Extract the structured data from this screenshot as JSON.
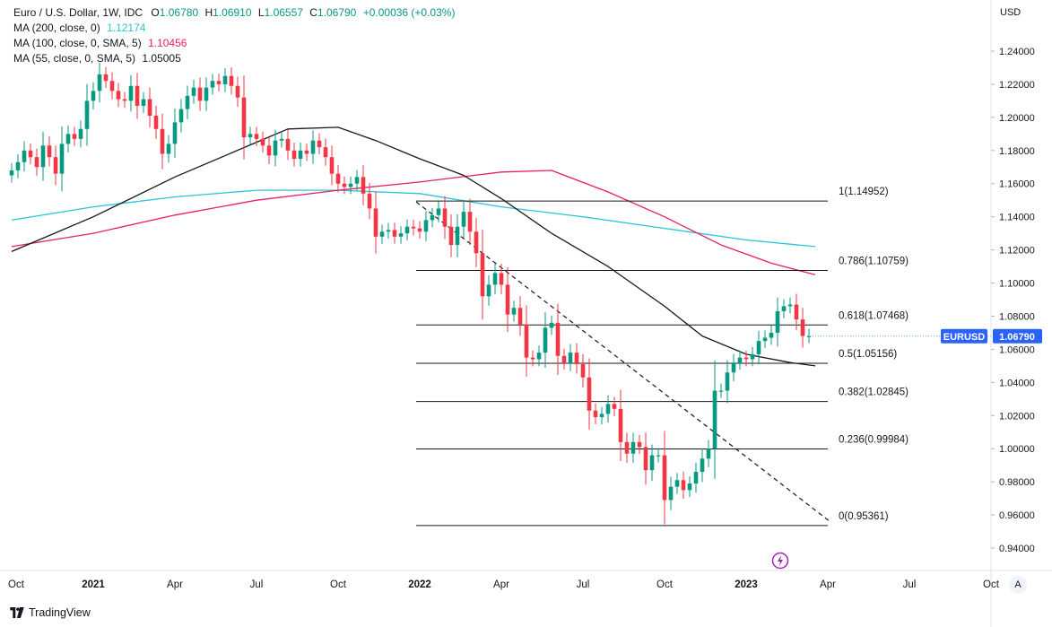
{
  "legend": {
    "symbol": "Euro / U.S. Dollar, 1W, IDC",
    "open_label": "O",
    "open": "1.06780",
    "high_label": "H",
    "high": "1.06910",
    "low_label": "L",
    "low": "1.06557",
    "close_label": "C",
    "close": "1.06790",
    "change": "+0.00036 (+0.03%)",
    "ma200_label": "MA (200, close, 0)",
    "ma200_value": "1.12174",
    "ma100_label": "MA (100, close, 0, SMA, 5)",
    "ma100_value": "1.10456",
    "ma55_label": "MA (55, close, 0, SMA, 5)",
    "ma55_value": "1.05005"
  },
  "currency": "USD",
  "branding": "TradingView",
  "auto_label": "A",
  "colors": {
    "up": "#089981",
    "down": "#f23645",
    "ma200": "#26c6da",
    "ma100": "#e91e63",
    "ma55": "#131722",
    "price_badge": "#2962ff",
    "fib_line": "#131722"
  },
  "chart_data": {
    "type": "candlestick",
    "title": "Euro / U.S. Dollar, 1W, IDC",
    "ylabel": "USD",
    "ylim": [
      0.928,
      1.255
    ],
    "y_ticks": [
      "1.24000",
      "1.22000",
      "1.20000",
      "1.18000",
      "1.16000",
      "1.14000",
      "1.12000",
      "1.10000",
      "1.08000",
      "1.06000",
      "1.04000",
      "1.02000",
      "1.00000",
      "0.98000",
      "0.96000",
      "0.94000"
    ],
    "x_ticks": [
      {
        "label": "Oct",
        "week": 0,
        "bold": false
      },
      {
        "label": "2021",
        "week": 13,
        "bold": true
      },
      {
        "label": "Apr",
        "week": 26,
        "bold": false
      },
      {
        "label": "Jul",
        "week": 39,
        "bold": false
      },
      {
        "label": "Oct",
        "week": 52,
        "bold": false
      },
      {
        "label": "2022",
        "week": 65,
        "bold": true
      },
      {
        "label": "Apr",
        "week": 78,
        "bold": false
      },
      {
        "label": "Jul",
        "week": 91,
        "bold": false
      },
      {
        "label": "Oct",
        "week": 104,
        "bold": false
      },
      {
        "label": "2023",
        "week": 117,
        "bold": true
      },
      {
        "label": "Apr",
        "week": 130,
        "bold": false
      },
      {
        "label": "Jul",
        "week": 143,
        "bold": false
      },
      {
        "label": "Oct",
        "week": 156,
        "bold": false
      }
    ],
    "last_price": {
      "symbol": "EURUSD",
      "value": "1.06790",
      "numeric": 1.0679
    },
    "candles_close": [
      1.168,
      1.173,
      1.18,
      1.176,
      1.17,
      1.183,
      1.176,
      1.166,
      1.184,
      1.19,
      1.187,
      1.193,
      1.21,
      1.216,
      1.226,
      1.222,
      1.216,
      1.211,
      1.21,
      1.219,
      1.207,
      1.211,
      1.201,
      1.193,
      1.178,
      1.184,
      1.197,
      1.205,
      1.213,
      1.218,
      1.21,
      1.218,
      1.222,
      1.22,
      1.225,
      1.219,
      1.212,
      1.188,
      1.19,
      1.187,
      1.183,
      1.177,
      1.186,
      1.187,
      1.18,
      1.175,
      1.18,
      1.178,
      1.186,
      1.182,
      1.176,
      1.166,
      1.16,
      1.158,
      1.16,
      1.164,
      1.154,
      1.145,
      1.128,
      1.131,
      1.132,
      1.128,
      1.13,
      1.134,
      1.133,
      1.131,
      1.138,
      1.141,
      1.145,
      1.134,
      1.123,
      1.134,
      1.143,
      1.131,
      1.118,
      1.092,
      1.099,
      1.106,
      1.099,
      1.081,
      1.085,
      1.075,
      1.055,
      1.054,
      1.058,
      1.073,
      1.076,
      1.056,
      1.052,
      1.058,
      1.051,
      1.043,
      1.023,
      1.019,
      1.021,
      1.027,
      1.024,
      1.004,
      0.997,
      1.004,
      1.001,
      0.987,
      0.996,
      0.996,
      0.969,
      0.977,
      0.981,
      0.975,
      0.979,
      0.986,
      0.994,
      1.0,
      1.035,
      1.035,
      1.046,
      1.052,
      1.055,
      1.054,
      1.057,
      1.065,
      1.067,
      1.07,
      1.083,
      1.086,
      1.087,
      1.078,
      1.068,
      1.068
    ],
    "candles_open": [
      1.165,
      1.168,
      1.173,
      1.18,
      1.176,
      1.17,
      1.183,
      1.176,
      1.166,
      1.184,
      1.19,
      1.187,
      1.193,
      1.21,
      1.216,
      1.226,
      1.222,
      1.216,
      1.211,
      1.21,
      1.219,
      1.207,
      1.211,
      1.201,
      1.193,
      1.178,
      1.184,
      1.197,
      1.205,
      1.213,
      1.218,
      1.21,
      1.218,
      1.222,
      1.22,
      1.225,
      1.219,
      1.212,
      1.188,
      1.19,
      1.187,
      1.183,
      1.177,
      1.186,
      1.187,
      1.18,
      1.175,
      1.18,
      1.178,
      1.186,
      1.182,
      1.176,
      1.166,
      1.16,
      1.158,
      1.16,
      1.164,
      1.154,
      1.145,
      1.128,
      1.131,
      1.132,
      1.128,
      1.13,
      1.134,
      1.133,
      1.131,
      1.138,
      1.141,
      1.145,
      1.134,
      1.123,
      1.134,
      1.143,
      1.131,
      1.118,
      1.092,
      1.099,
      1.106,
      1.099,
      1.081,
      1.085,
      1.075,
      1.055,
      1.054,
      1.058,
      1.073,
      1.076,
      1.056,
      1.052,
      1.058,
      1.051,
      1.043,
      1.023,
      1.019,
      1.021,
      1.027,
      1.024,
      1.004,
      0.997,
      1.004,
      1.001,
      0.987,
      0.996,
      0.996,
      0.969,
      0.977,
      0.981,
      0.975,
      0.979,
      0.986,
      0.994,
      1.0,
      1.035,
      1.035,
      1.046,
      1.052,
      1.055,
      1.054,
      1.057,
      1.065,
      1.067,
      1.07,
      1.083,
      1.086,
      1.087,
      1.078,
      1.068
    ],
    "fib_levels": [
      {
        "label": "1(1.14952)",
        "value": 1.14952
      },
      {
        "label": "0.786(1.10759)",
        "value": 1.10759
      },
      {
        "label": "0.618(1.07468)",
        "value": 1.07468
      },
      {
        "label": "0.5(1.05156)",
        "value": 1.05156
      },
      {
        "label": "0.382(1.02845)",
        "value": 1.02845
      },
      {
        "label": "0.236(0.99984)",
        "value": 0.99984
      },
      {
        "label": "0(0.95361)",
        "value": 0.95361
      }
    ],
    "fib_start_week": 67,
    "fib_end_week": 130,
    "trendline": {
      "start_week": 67,
      "start_value": 1.149,
      "end_week": 131,
      "end_value": 0.955
    },
    "ma200": [
      [
        0,
        1.138
      ],
      [
        13,
        1.146
      ],
      [
        26,
        1.152
      ],
      [
        39,
        1.156
      ],
      [
        52,
        1.156
      ],
      [
        65,
        1.154
      ],
      [
        78,
        1.146
      ],
      [
        91,
        1.14
      ],
      [
        104,
        1.133
      ],
      [
        117,
        1.126
      ],
      [
        128,
        1.122
      ]
    ],
    "ma100": [
      [
        0,
        1.122
      ],
      [
        13,
        1.13
      ],
      [
        26,
        1.141
      ],
      [
        39,
        1.15
      ],
      [
        52,
        1.156
      ],
      [
        65,
        1.161
      ],
      [
        78,
        1.167
      ],
      [
        86,
        1.168
      ],
      [
        95,
        1.155
      ],
      [
        104,
        1.14
      ],
      [
        113,
        1.123
      ],
      [
        121,
        1.112
      ],
      [
        128,
        1.105
      ]
    ],
    "ma55": [
      [
        0,
        1.119
      ],
      [
        13,
        1.14
      ],
      [
        26,
        1.164
      ],
      [
        39,
        1.185
      ],
      [
        44,
        1.193
      ],
      [
        52,
        1.194
      ],
      [
        58,
        1.186
      ],
      [
        65,
        1.175
      ],
      [
        72,
        1.165
      ],
      [
        78,
        1.151
      ],
      [
        86,
        1.13
      ],
      [
        95,
        1.11
      ],
      [
        104,
        1.086
      ],
      [
        110,
        1.068
      ],
      [
        117,
        1.057
      ],
      [
        124,
        1.052
      ],
      [
        128,
        1.05
      ]
    ]
  }
}
